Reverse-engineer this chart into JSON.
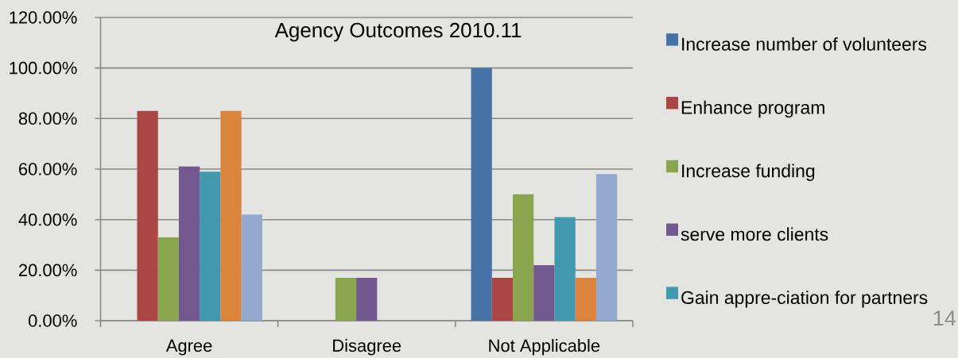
{
  "chart_data": {
    "type": "bar",
    "title": "Agency Outcomes 2010.11",
    "categories": [
      "Agree",
      "Disagree",
      "Not Applicable"
    ],
    "series": [
      {
        "name": "Increase number of volunteers",
        "color": "#4572a7",
        "values": [
          0,
          0,
          100
        ]
      },
      {
        "name": "Enhance program",
        "color": "#aa4643",
        "values": [
          83,
          0,
          17
        ]
      },
      {
        "name": "Increase funding",
        "color": "#89a54e",
        "values": [
          33,
          17,
          50
        ]
      },
      {
        "name": "serve more clients",
        "color": "#71588f",
        "values": [
          61,
          17,
          22
        ]
      },
      {
        "name": "Gain appre-ciation for partners",
        "color": "#4198af",
        "values": [
          59,
          0,
          41
        ]
      },
      {
        "color": "#db843d",
        "values": [
          83,
          0,
          17
        ]
      },
      {
        "color": "#93a9cf",
        "values": [
          42,
          0,
          58
        ]
      }
    ],
    "ylim": [
      0,
      120
    ],
    "yticks": [
      {
        "value": 0,
        "label": "0.00%"
      },
      {
        "value": 20,
        "label": "20.00%"
      },
      {
        "value": 40,
        "label": "40.00%"
      },
      {
        "value": 60,
        "label": "60.00%"
      },
      {
        "value": 80,
        "label": "80.00%"
      },
      {
        "value": 100,
        "label": "100.00%"
      },
      {
        "value": 120,
        "label": "120.00%"
      }
    ],
    "grid": "y",
    "legend": "right",
    "annotations": [
      "14"
    ]
  }
}
